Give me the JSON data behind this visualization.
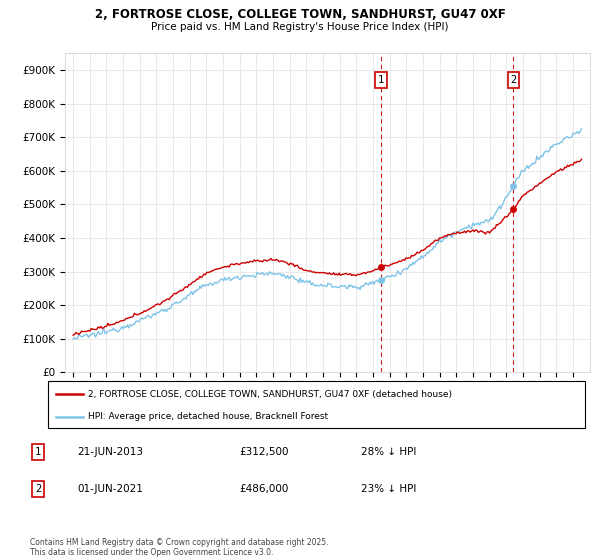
{
  "title_line1": "2, FORTROSE CLOSE, COLLEGE TOWN, SANDHURST, GU47 0XF",
  "title_line2": "Price paid vs. HM Land Registry's House Price Index (HPI)",
  "ylim": [
    0,
    950000
  ],
  "yticks": [
    0,
    100000,
    200000,
    300000,
    400000,
    500000,
    600000,
    700000,
    800000,
    900000
  ],
  "ytick_labels": [
    "£0",
    "£100K",
    "£200K",
    "£300K",
    "£400K",
    "£500K",
    "£600K",
    "£700K",
    "£800K",
    "£900K"
  ],
  "hpi_color": "#7fc4e8",
  "price_color": "#cc0000",
  "sale1_year": 2013.46,
  "sale2_year": 2021.42,
  "sale1_price": 312500,
  "sale2_price": 486000,
  "legend_red_label": "2, FORTROSE CLOSE, COLLEGE TOWN, SANDHURST, GU47 0XF (detached house)",
  "legend_blue_label": "HPI: Average price, detached house, Bracknell Forest",
  "footer": "Contains HM Land Registry data © Crown copyright and database right 2025.\nThis data is licensed under the Open Government Licence v3.0.",
  "start_year": 1995,
  "end_year": 2025
}
